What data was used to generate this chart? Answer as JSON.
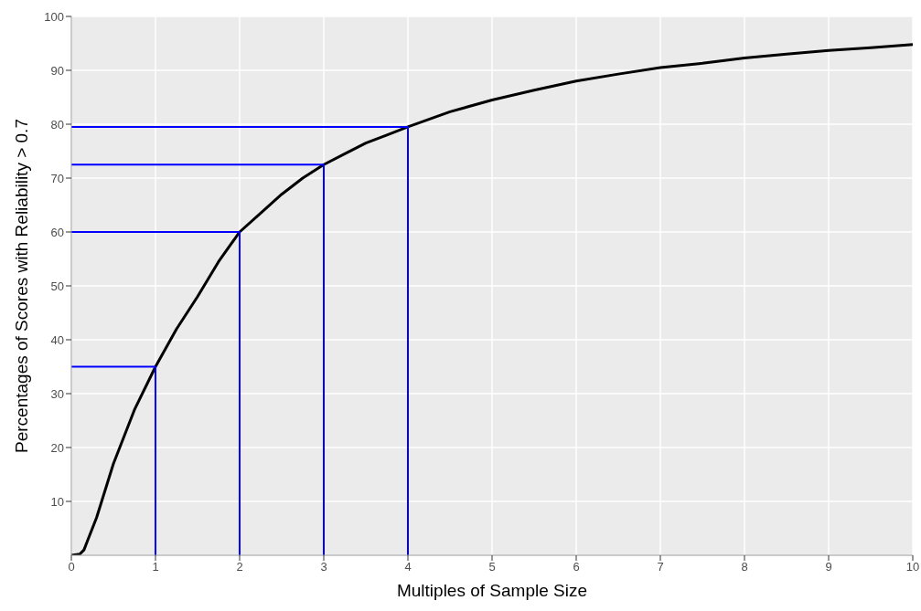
{
  "chart_data": {
    "type": "line",
    "xlabel": "Multiples of Sample Size",
    "ylabel": "Percentages of Scores with Reliability > 0.7",
    "xlim": [
      0,
      10
    ],
    "xticks": [
      0,
      1,
      2,
      3,
      4,
      5,
      6,
      7,
      8,
      9,
      10
    ],
    "ylim": [
      0,
      100
    ],
    "yticks": [
      10,
      20,
      30,
      40,
      50,
      60,
      70,
      80,
      90,
      100
    ],
    "grid": true,
    "legend": false,
    "marker": "none",
    "line_style": "solid",
    "series": [
      {
        "color": "#000000",
        "x": [
          0,
          0.1,
          0.15,
          0.2,
          0.25,
          0.3,
          0.5,
          0.75,
          1,
          1.25,
          1.5,
          1.75,
          2,
          2.25,
          2.5,
          2.75,
          3,
          3.25,
          3.5,
          3.75,
          4,
          4.5,
          5,
          5.5,
          6,
          6.5,
          7,
          7.5,
          8,
          8.5,
          9,
          9.5,
          10
        ],
        "values": [
          0,
          0.2,
          1,
          3,
          5,
          7,
          17,
          27,
          35,
          42,
          48,
          54.5,
          60,
          63.5,
          67,
          70,
          72.5,
          74.5,
          76.5,
          78,
          79.5,
          82.3,
          84.5,
          86.3,
          88,
          89.3,
          90.5,
          91.3,
          92.3,
          93,
          93.7,
          94.2,
          94.8
        ]
      },
      {
        "color": "#0000ff",
        "x": [
          0,
          1,
          1
        ],
        "values": [
          35,
          35,
          0
        ]
      },
      {
        "color": "#0000ff",
        "x": [
          0,
          2,
          2
        ],
        "values": [
          60,
          60,
          0
        ]
      },
      {
        "color": "#0000ff",
        "x": [
          0,
          3,
          3
        ],
        "values": [
          72.5,
          72.5,
          0
        ]
      },
      {
        "color": "#0000ff",
        "x": [
          0,
          4,
          4
        ],
        "values": [
          79.5,
          79.5,
          0
        ]
      }
    ]
  }
}
